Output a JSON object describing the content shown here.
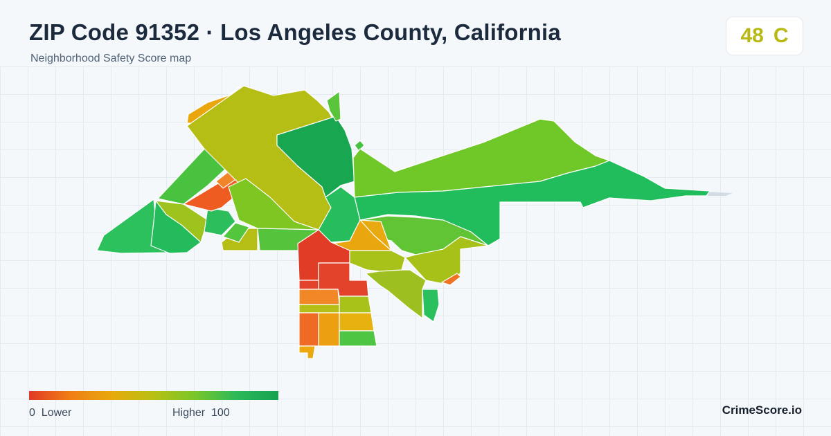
{
  "header": {
    "title": "ZIP Code 91352 · Los Angeles County, California",
    "subtitle": "Neighborhood Safety Score map"
  },
  "score": {
    "value": "48",
    "grade": "C",
    "color": "#b8b914"
  },
  "legend": {
    "min_label": "0",
    "min_text": "Lower",
    "max_text": "Higher",
    "max_label": "100",
    "colors": [
      "#e13a26",
      "#f07e15",
      "#e7a90c",
      "#b7c013",
      "#79c62b",
      "#2bb958",
      "#17a150"
    ]
  },
  "brand": "CrimeScore.io"
}
